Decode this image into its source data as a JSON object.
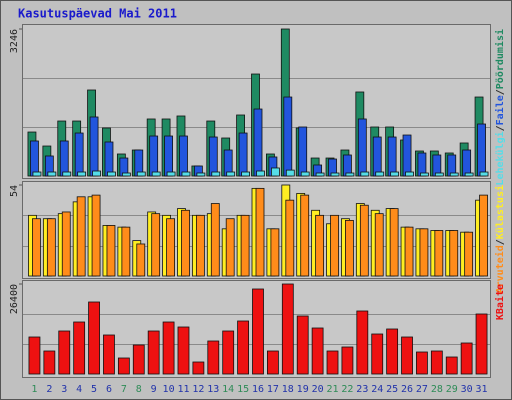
{
  "title": "Kasutuspäevad Mai 2011",
  "legend_separator": "/",
  "chart_data": [
    {
      "type": "bar",
      "ylim": [
        0,
        3246
      ],
      "yticks": [
        3246
      ],
      "series": [
        {
          "name": "Pöördumisi",
          "color": "#1f8a62",
          "values": [
            971,
            662,
            1214,
            1214,
            1899,
            1060,
            486,
            574,
            1259,
            1259,
            1325,
            221,
            1214,
            839,
            1347,
            2252,
            486,
            3246,
            1060,
            397,
            397,
            574,
            1855,
            1082,
            1082,
            795,
            552,
            552,
            508,
            729,
            1744
          ]
        },
        {
          "name": "Faile",
          "color": "#2255dd",
          "values": [
            773,
            442,
            773,
            949,
            1303,
            751,
            397,
            574,
            883,
            883,
            883,
            221,
            861,
            574,
            949,
            1479,
            420,
            1744,
            1082,
            243,
            375,
            464,
            1259,
            861,
            861,
            905,
            508,
            464,
            464,
            574,
            1148
          ]
        },
        {
          "name": "Lehekülgi",
          "color": "#55dde8",
          "values": [
            88,
            88,
            88,
            88,
            110,
            88,
            66,
            88,
            88,
            88,
            88,
            66,
            88,
            88,
            88,
            110,
            177,
            130,
            88,
            66,
            66,
            66,
            88,
            88,
            88,
            88,
            66,
            66,
            66,
            66,
            88
          ]
        }
      ]
    },
    {
      "type": "bar",
      "ylim": [
        0,
        54
      ],
      "yticks": [
        54
      ],
      "series": [
        {
          "name": "Külastusi",
          "color": "#ffee22",
          "values": [
            36,
            34,
            37,
            44,
            47,
            30,
            29,
            21,
            38,
            36,
            40,
            36,
            37,
            28,
            36,
            52,
            28,
            54,
            49,
            39,
            31,
            34,
            43,
            39,
            40,
            29,
            28,
            27,
            27,
            26,
            45
          ]
        },
        {
          "name": "Arvuteid",
          "color": "#ff8c1a",
          "values": [
            34,
            34,
            38,
            47,
            48,
            30,
            29,
            19,
            37,
            34,
            39,
            36,
            43,
            34,
            36,
            52,
            28,
            45,
            48,
            36,
            36,
            33,
            42,
            37,
            40,
            29,
            28,
            27,
            27,
            26,
            48
          ]
        }
      ]
    },
    {
      "type": "bar",
      "ylim": [
        0,
        26400
      ],
      "yticks": [
        26400
      ],
      "categories": [
        "1",
        "2",
        "3",
        "4",
        "5",
        "6",
        "7",
        "8",
        "9",
        "10",
        "11",
        "12",
        "13",
        "14",
        "15",
        "16",
        "17",
        "18",
        "19",
        "20",
        "21",
        "22",
        "23",
        "24",
        "25",
        "26",
        "27",
        "28",
        "29",
        "30",
        "31"
      ],
      "label_colors": [
        "#2e8b57",
        "#2233aa",
        "#2233aa",
        "#2233aa",
        "#2233aa",
        "#2233aa",
        "#2e8b57",
        "#2e8b57",
        "#2233aa",
        "#2233aa",
        "#2233aa",
        "#2233aa",
        "#2233aa",
        "#2e8b57",
        "#2e8b57",
        "#2233aa",
        "#2233aa",
        "#2233aa",
        "#2233aa",
        "#2233aa",
        "#2e8b57",
        "#2e8b57",
        "#2233aa",
        "#2233aa",
        "#2233aa",
        "#2233aa",
        "#2233aa",
        "#2e8b57",
        "#2e8b57",
        "#2233aa",
        "#2233aa"
      ],
      "series": [
        {
          "name": "KBaite",
          "color": "#ee1111",
          "values": [
            10853,
            6747,
            12613,
            15253,
            21120,
            11440,
            4693,
            8507,
            12613,
            15253,
            13787,
            3520,
            9680,
            12613,
            15547,
            24933,
            6747,
            26400,
            17013,
            13493,
            6747,
            7920,
            18480,
            11733,
            13200,
            10853,
            6453,
            6747,
            4987,
            9093,
            17600
          ]
        }
      ]
    }
  ]
}
